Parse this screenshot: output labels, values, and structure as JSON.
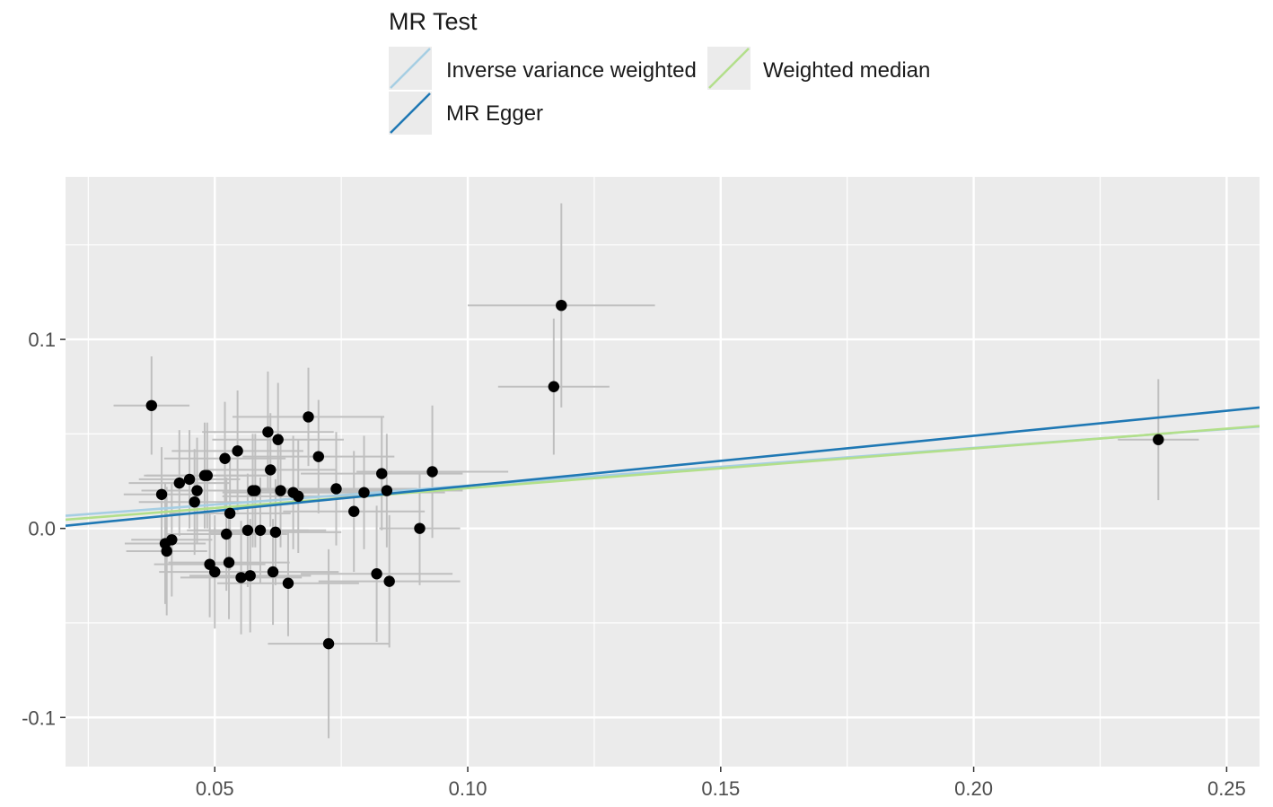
{
  "legend": {
    "title": "MR Test",
    "entries": [
      {
        "label": "Inverse variance weighted",
        "color": "#a6cee3"
      },
      {
        "label": "MR Egger",
        "color": "#1f78b4"
      },
      {
        "label": "Weighted median",
        "color": "#b2df8a"
      }
    ]
  },
  "chart_data": {
    "type": "scatter",
    "title": "",
    "xlabel": "",
    "ylabel": "",
    "xlim": [
      0.0205,
      0.2565
    ],
    "ylim": [
      -0.126,
      0.186
    ],
    "grid": true,
    "panel_background": "#ebebeb",
    "point_color": "#000000",
    "errorbar_color": "#bfbfbf",
    "legend_position": "top",
    "x_ticks": [
      0.05,
      0.1,
      0.15,
      0.2,
      0.25
    ],
    "x_tick_labels": [
      "0.05",
      "0.10",
      "0.15",
      "0.20",
      "0.25"
    ],
    "y_ticks": [
      -0.1,
      0.0,
      0.1
    ],
    "y_tick_labels": [
      "-0.1",
      "0.0",
      "0.1"
    ],
    "points": [
      {
        "x": 0.0375,
        "y": 0.065,
        "xerr": 0.0075,
        "yerr": 0.026
      },
      {
        "x": 0.0395,
        "y": 0.018,
        "xerr": 0.0075,
        "yerr": 0.025
      },
      {
        "x": 0.0402,
        "y": -0.008,
        "xerr": 0.008,
        "yerr": 0.032
      },
      {
        "x": 0.0405,
        "y": -0.012,
        "xerr": 0.008,
        "yerr": 0.034
      },
      {
        "x": 0.0415,
        "y": -0.006,
        "xerr": 0.008,
        "yerr": 0.03
      },
      {
        "x": 0.043,
        "y": 0.024,
        "xerr": 0.01,
        "yerr": 0.028
      },
      {
        "x": 0.045,
        "y": 0.026,
        "xerr": 0.01,
        "yerr": 0.026
      },
      {
        "x": 0.046,
        "y": 0.014,
        "xerr": 0.011,
        "yerr": 0.028
      },
      {
        "x": 0.0465,
        "y": 0.02,
        "xerr": 0.011,
        "yerr": 0.028
      },
      {
        "x": 0.048,
        "y": 0.028,
        "xerr": 0.012,
        "yerr": 0.028
      },
      {
        "x": 0.0485,
        "y": 0.028,
        "xerr": 0.012,
        "yerr": 0.028
      },
      {
        "x": 0.049,
        "y": -0.019,
        "xerr": 0.011,
        "yerr": 0.028
      },
      {
        "x": 0.05,
        "y": -0.023,
        "xerr": 0.011,
        "yerr": 0.03
      },
      {
        "x": 0.052,
        "y": 0.037,
        "xerr": 0.012,
        "yerr": 0.03
      },
      {
        "x": 0.0523,
        "y": -0.003,
        "xerr": 0.012,
        "yerr": 0.03
      },
      {
        "x": 0.0528,
        "y": -0.018,
        "xerr": 0.012,
        "yerr": 0.03
      },
      {
        "x": 0.053,
        "y": 0.008,
        "xerr": 0.012,
        "yerr": 0.03
      },
      {
        "x": 0.0545,
        "y": 0.041,
        "xerr": 0.013,
        "yerr": 0.032
      },
      {
        "x": 0.0552,
        "y": -0.026,
        "xerr": 0.012,
        "yerr": 0.03
      },
      {
        "x": 0.0565,
        "y": -0.001,
        "xerr": 0.012,
        "yerr": 0.03
      },
      {
        "x": 0.057,
        "y": -0.025,
        "xerr": 0.012,
        "yerr": 0.03
      },
      {
        "x": 0.0575,
        "y": 0.02,
        "xerr": 0.013,
        "yerr": 0.03
      },
      {
        "x": 0.058,
        "y": 0.02,
        "xerr": 0.013,
        "yerr": 0.03
      },
      {
        "x": 0.059,
        "y": -0.001,
        "xerr": 0.013,
        "yerr": 0.028
      },
      {
        "x": 0.0605,
        "y": 0.051,
        "xerr": 0.013,
        "yerr": 0.032
      },
      {
        "x": 0.061,
        "y": 0.031,
        "xerr": 0.013,
        "yerr": 0.03
      },
      {
        "x": 0.0615,
        "y": -0.023,
        "xerr": 0.013,
        "yerr": 0.028
      },
      {
        "x": 0.062,
        "y": -0.002,
        "xerr": 0.013,
        "yerr": 0.028
      },
      {
        "x": 0.0625,
        "y": 0.047,
        "xerr": 0.013,
        "yerr": 0.03
      },
      {
        "x": 0.063,
        "y": 0.02,
        "xerr": 0.014,
        "yerr": 0.03
      },
      {
        "x": 0.0645,
        "y": -0.029,
        "xerr": 0.014,
        "yerr": 0.028
      },
      {
        "x": 0.0655,
        "y": 0.019,
        "xerr": 0.014,
        "yerr": 0.03
      },
      {
        "x": 0.0665,
        "y": 0.017,
        "xerr": 0.015,
        "yerr": 0.03
      },
      {
        "x": 0.0685,
        "y": 0.059,
        "xerr": 0.015,
        "yerr": 0.026
      },
      {
        "x": 0.0705,
        "y": 0.038,
        "xerr": 0.015,
        "yerr": 0.03
      },
      {
        "x": 0.0725,
        "y": -0.061,
        "xerr": 0.012,
        "yerr": 0.05
      },
      {
        "x": 0.074,
        "y": 0.021,
        "xerr": 0.016,
        "yerr": 0.03
      },
      {
        "x": 0.0775,
        "y": 0.009,
        "xerr": 0.014,
        "yerr": 0.032
      },
      {
        "x": 0.0795,
        "y": 0.019,
        "xerr": 0.016,
        "yerr": 0.03
      },
      {
        "x": 0.082,
        "y": -0.024,
        "xerr": 0.015,
        "yerr": 0.036
      },
      {
        "x": 0.083,
        "y": 0.029,
        "xerr": 0.016,
        "yerr": 0.03
      },
      {
        "x": 0.084,
        "y": 0.02,
        "xerr": 0.015,
        "yerr": 0.03
      },
      {
        "x": 0.0845,
        "y": -0.028,
        "xerr": 0.014,
        "yerr": 0.035
      },
      {
        "x": 0.0905,
        "y": 0.0,
        "xerr": 0.008,
        "yerr": 0.03
      },
      {
        "x": 0.093,
        "y": 0.03,
        "xerr": 0.015,
        "yerr": 0.035
      },
      {
        "x": 0.117,
        "y": 0.075,
        "xerr": 0.011,
        "yerr": 0.036
      },
      {
        "x": 0.1185,
        "y": 0.118,
        "xerr": 0.0185,
        "yerr": 0.054
      },
      {
        "x": 0.2365,
        "y": 0.047,
        "xerr": 0.008,
        "yerr": 0.032
      }
    ],
    "series": [
      {
        "name": "Inverse variance weighted",
        "intercept": 0.0026,
        "slope": 0.2
      },
      {
        "name": "MR Egger",
        "intercept": -0.004,
        "slope": 0.265
      },
      {
        "name": "Weighted median",
        "intercept": 0.0003,
        "slope": 0.21
      }
    ]
  }
}
